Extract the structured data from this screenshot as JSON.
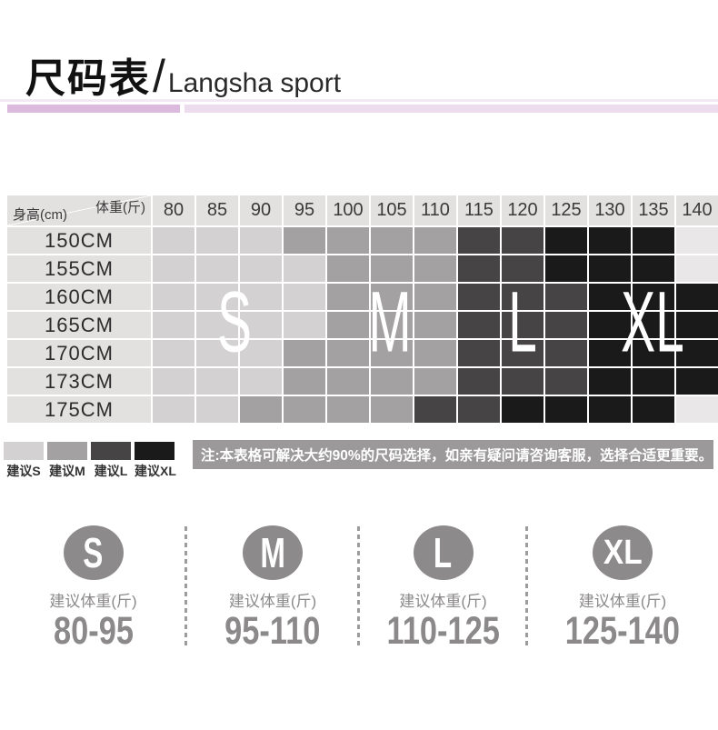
{
  "title": {
    "cn": "尺码表",
    "divider": "/",
    "en": "Langsha sport"
  },
  "size_chart": {
    "corner_top_right": "体重(斤)",
    "corner_bottom_left": "身高(cm)",
    "weight_columns": [
      "80",
      "85",
      "90",
      "95",
      "100",
      "105",
      "110",
      "115",
      "120",
      "125",
      "130",
      "135",
      "140"
    ],
    "rows": [
      {
        "height": "150CM",
        "cells": [
          "S",
          "S",
          "S",
          "M",
          "M",
          "M",
          "M",
          "L",
          "L",
          "XL",
          "XL",
          "XL",
          ""
        ]
      },
      {
        "height": "155CM",
        "cells": [
          "S",
          "S",
          "S",
          "S",
          "M",
          "M",
          "M",
          "L",
          "L",
          "XL",
          "XL",
          "XL",
          ""
        ]
      },
      {
        "height": "160CM",
        "cells": [
          "S",
          "S",
          "S",
          "S",
          "M",
          "M",
          "M",
          "L",
          "L",
          "L",
          "XL",
          "XL",
          "XL"
        ]
      },
      {
        "height": "165CM",
        "cells": [
          "S",
          "S",
          "S",
          "S",
          "M",
          "M",
          "M",
          "L",
          "L",
          "L",
          "XL",
          "XL",
          "XL"
        ]
      },
      {
        "height": "170CM",
        "cells": [
          "S",
          "S",
          "S",
          "M",
          "M",
          "M",
          "M",
          "L",
          "L",
          "L",
          "XL",
          "XL",
          "XL"
        ]
      },
      {
        "height": "173CM",
        "cells": [
          "S",
          "S",
          "S",
          "M",
          "M",
          "M",
          "M",
          "L",
          "L",
          "L",
          "XL",
          "XL",
          "XL"
        ]
      },
      {
        "height": "175CM",
        "cells": [
          "S",
          "S",
          "M",
          "M",
          "M",
          "M",
          "L",
          "L",
          "XL",
          "XL",
          "XL",
          "XL",
          ""
        ]
      }
    ],
    "overlay_letters": {
      "s": "S",
      "m": "M",
      "l": "L",
      "xl": "XL"
    }
  },
  "legend": {
    "items": [
      {
        "size": "S",
        "label": "建议S"
      },
      {
        "size": "M",
        "label": "建议M"
      },
      {
        "size": "L",
        "label": "建议L"
      },
      {
        "size": "XL",
        "label": "建议XL"
      }
    ]
  },
  "note": "注:本表格可解决大约90%的尺码选择，如亲有疑问请咨询客服，选择合适更重要。",
  "size_cards": [
    {
      "size": "S",
      "label": "建议体重(斤)",
      "range": "80-95"
    },
    {
      "size": "M",
      "label": "建议体重(斤)",
      "range": "95-110"
    },
    {
      "size": "L",
      "label": "建议体重(斤)",
      "range": "110-125"
    },
    {
      "size": "XL",
      "label": "建议体重(斤)",
      "range": "125-140"
    }
  ],
  "colors": {
    "S": "#d3d1d1",
    "M": "#a3a1a1",
    "L": "#464444",
    "XL": "#1b1a1a",
    "empty": "#e9e7e7",
    "header_bg": "#e3e0e0",
    "note_bg": "#9b9999",
    "circle": "#8c8a8a",
    "bottom_text": "#8b8989",
    "bar_dark": "#dcbade",
    "bar_light": "#ecdcee",
    "bar_thin": "#f3e9f4"
  },
  "chart_data": {
    "type": "heatmap",
    "title": "尺码表/Langsha sport",
    "x_label": "体重(斤)",
    "y_label": "身高(cm)",
    "x": [
      80,
      85,
      90,
      95,
      100,
      105,
      110,
      115,
      120,
      125,
      130,
      135,
      140
    ],
    "y": [
      "150CM",
      "155CM",
      "160CM",
      "165CM",
      "170CM",
      "173CM",
      "175CM"
    ],
    "values": [
      [
        "S",
        "S",
        "S",
        "M",
        "M",
        "M",
        "M",
        "L",
        "L",
        "XL",
        "XL",
        "XL",
        null
      ],
      [
        "S",
        "S",
        "S",
        "S",
        "M",
        "M",
        "M",
        "L",
        "L",
        "XL",
        "XL",
        "XL",
        null
      ],
      [
        "S",
        "S",
        "S",
        "S",
        "M",
        "M",
        "M",
        "L",
        "L",
        "L",
        "XL",
        "XL",
        "XL"
      ],
      [
        "S",
        "S",
        "S",
        "S",
        "M",
        "M",
        "M",
        "L",
        "L",
        "L",
        "XL",
        "XL",
        "XL"
      ],
      [
        "S",
        "S",
        "S",
        "M",
        "M",
        "M",
        "M",
        "L",
        "L",
        "L",
        "XL",
        "XL",
        "XL"
      ],
      [
        "S",
        "S",
        "S",
        "M",
        "M",
        "M",
        "M",
        "L",
        "L",
        "L",
        "XL",
        "XL",
        "XL"
      ],
      [
        "S",
        "S",
        "M",
        "M",
        "M",
        "M",
        "L",
        "L",
        "XL",
        "XL",
        "XL",
        "XL",
        null
      ]
    ],
    "legend": [
      "建议S",
      "建议M",
      "建议L",
      "建议XL"
    ],
    "annotations": [
      "S",
      "M",
      "L",
      "XL"
    ],
    "size_weight_ranges": {
      "S": "80-95",
      "M": "95-110",
      "L": "110-125",
      "XL": "125-140"
    },
    "note": "注:本表格可解决大约90%的尺码选择，如亲有疑问请咨询客服，选择合适更重要。"
  }
}
